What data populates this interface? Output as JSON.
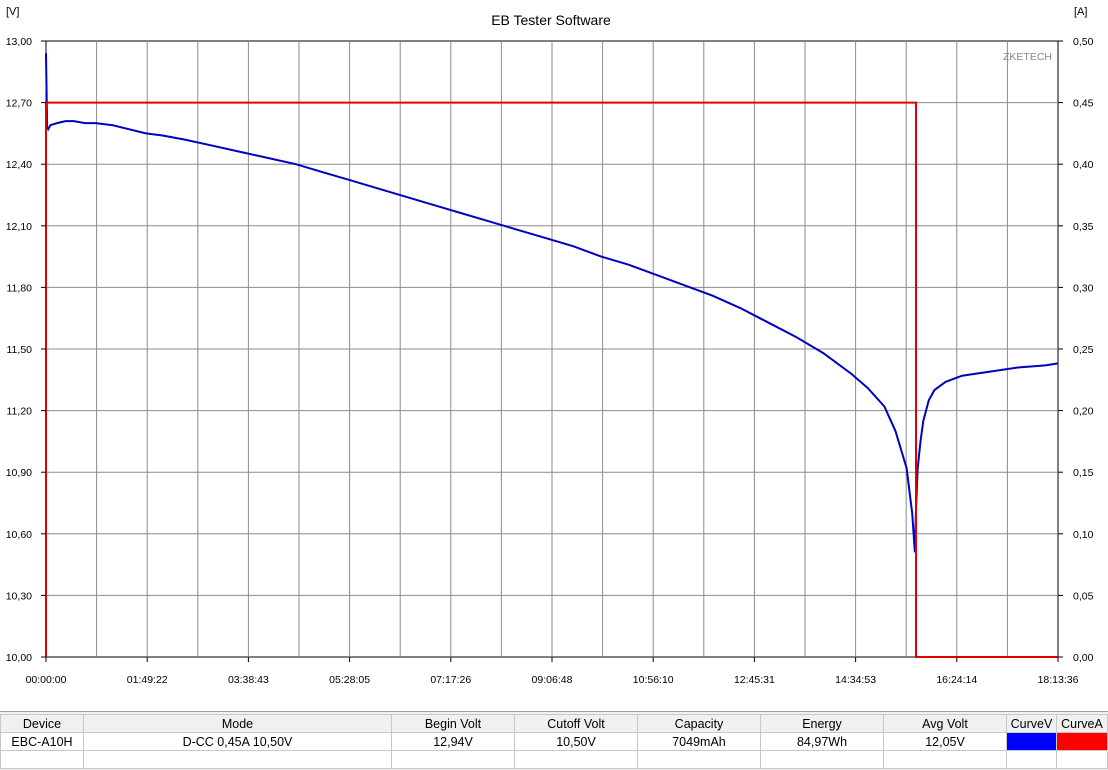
{
  "chart_data": {
    "type": "line",
    "title": "EB Tester Software",
    "watermark": "ZKETECH",
    "left_unit": "[V]",
    "right_unit": "[A]",
    "left_axis": {
      "range": [
        10.0,
        13.0
      ],
      "ticks": [
        13.0,
        12.7,
        12.4,
        12.1,
        11.8,
        11.5,
        11.2,
        10.9,
        10.6,
        10.3,
        10.0
      ],
      "tick_labels": [
        "13,00",
        "12,70",
        "12,40",
        "12,10",
        "11,80",
        "11,50",
        "11,20",
        "10,90",
        "10,60",
        "10,30",
        "10,00"
      ]
    },
    "right_axis": {
      "range": [
        0.0,
        0.5
      ],
      "ticks": [
        0.5,
        0.45,
        0.4,
        0.35,
        0.3,
        0.25,
        0.2,
        0.15,
        0.1,
        0.05,
        0.0
      ],
      "tick_labels": [
        "0,50",
        "0,45",
        "0,40",
        "0,35",
        "0,30",
        "0,25",
        "0,20",
        "0,15",
        "0,10",
        "0,05",
        "0,00"
      ]
    },
    "x_axis": {
      "unit": "hours",
      "range": [
        0,
        18.2267
      ],
      "ticks": [
        0,
        1.8228,
        3.6453,
        5.4681,
        7.2906,
        9.1133,
        10.9361,
        12.7586,
        14.5814,
        16.4039,
        18.2267
      ],
      "tick_labels": [
        "00:00:00",
        "01:49:22",
        "03:38:43",
        "05:28:05",
        "07:17:26",
        "09:06:48",
        "10:56:10",
        "12:45:31",
        "14:34:53",
        "16:24:14",
        "18:13:36"
      ]
    },
    "grid": true,
    "series": [
      {
        "name": "CurveV",
        "axis": "left",
        "color": "#0000c0",
        "x": [
          0,
          0.02,
          0.04,
          0.08,
          0.2,
          0.35,
          0.5,
          0.7,
          0.9,
          1.2,
          1.5,
          1.8,
          2.1,
          2.5,
          3.0,
          3.5,
          4.0,
          4.5,
          5.0,
          5.5,
          6.0,
          6.5,
          7.0,
          7.5,
          8.0,
          8.5,
          9.0,
          9.5,
          10.0,
          10.5,
          11.0,
          11.5,
          12.0,
          12.5,
          13.0,
          13.5,
          14.0,
          14.5,
          14.8,
          15.1,
          15.3,
          15.5,
          15.6,
          15.65,
          15.67,
          15.7,
          15.75,
          15.8,
          15.9,
          16.0,
          16.2,
          16.5,
          17.0,
          17.5,
          18.0,
          18.2267
        ],
        "y": [
          12.94,
          12.58,
          12.57,
          12.59,
          12.6,
          12.61,
          12.61,
          12.6,
          12.6,
          12.59,
          12.57,
          12.55,
          12.54,
          12.52,
          12.49,
          12.46,
          12.43,
          12.4,
          12.36,
          12.32,
          12.28,
          12.24,
          12.2,
          12.16,
          12.12,
          12.08,
          12.04,
          12.0,
          11.95,
          11.91,
          11.86,
          11.81,
          11.76,
          11.7,
          11.63,
          11.56,
          11.48,
          11.38,
          11.31,
          11.22,
          11.1,
          10.92,
          10.7,
          10.51,
          10.72,
          10.92,
          11.05,
          11.15,
          11.25,
          11.3,
          11.34,
          11.37,
          11.39,
          11.41,
          11.42,
          11.43
        ]
      },
      {
        "name": "CurveA",
        "axis": "right",
        "color": "#e00000",
        "x": [
          0,
          0,
          15.67,
          15.67,
          18.2267
        ],
        "y": [
          0.0,
          0.45,
          0.45,
          0.0,
          0.0
        ]
      }
    ]
  },
  "table": {
    "headers": [
      "Device",
      "Mode",
      "Begin Volt",
      "Cutoff Volt",
      "Capacity",
      "Energy",
      "Avg Volt",
      "CurveV",
      "CurveA"
    ],
    "row": [
      "EBC-A10H",
      "D-CC  0,45A  10,50V",
      "12,94V",
      "10,50V",
      "7049mAh",
      "84,97Wh",
      "12,05V"
    ],
    "swatch_colors": [
      "#0000ff",
      "#ff0000"
    ]
  }
}
